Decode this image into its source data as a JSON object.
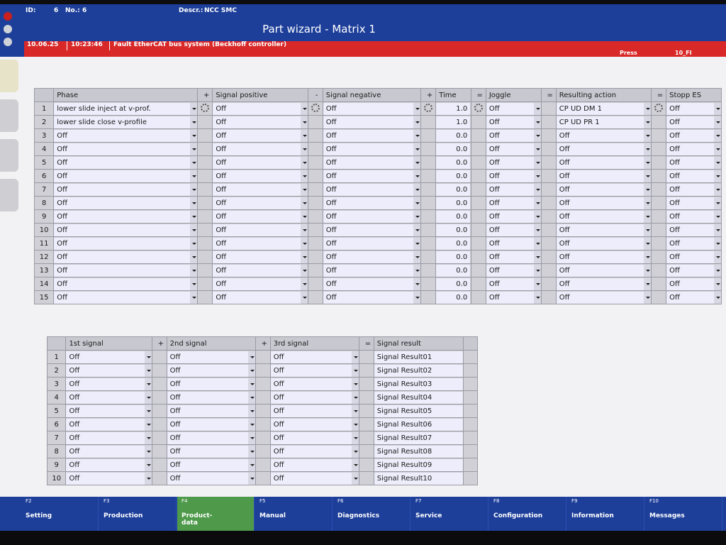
{
  "header": {
    "id_label": "ID:",
    "id_value": "6",
    "no_label": "No.:",
    "no_value": "6",
    "descr_label": "Descr.:",
    "descr_value": "NCC SMC",
    "title": "Part wizard - Matrix 1"
  },
  "alarm": {
    "date": "10.06.25",
    "time": "10:23:46",
    "message": "Fault EtherCAT bus system (Beckhoff controller)",
    "mode": "Press",
    "code": "10_FI",
    "color": "#d92828"
  },
  "matrix": {
    "headers": {
      "phase": "Phase",
      "op1": "+",
      "signal_positive": "Signal positive",
      "op2": "-",
      "signal_negative": "Signal negative",
      "op3": "+",
      "time": "Time",
      "op4": "=",
      "joggle": "Joggle",
      "op5": "=",
      "resulting_action": "Resulting action",
      "op6": "=",
      "stopp_es": "Stopp ES"
    },
    "rows": [
      {
        "n": "1",
        "phase": "lower slide inject at v-prof.",
        "pos": "Off",
        "neg": "Off",
        "time": "1.0",
        "joggle": "Off",
        "action": "CP UD DM 1",
        "stopp": "Off"
      },
      {
        "n": "2",
        "phase": "lower slide close v-profile",
        "pos": "Off",
        "neg": "Off",
        "time": "1.0",
        "joggle": "Off",
        "action": "CP UD PR 1",
        "stopp": "Off"
      },
      {
        "n": "3",
        "phase": "Off",
        "pos": "Off",
        "neg": "Off",
        "time": "0.0",
        "joggle": "Off",
        "action": "Off",
        "stopp": "Off"
      },
      {
        "n": "4",
        "phase": "Off",
        "pos": "Off",
        "neg": "Off",
        "time": "0.0",
        "joggle": "Off",
        "action": "Off",
        "stopp": "Off"
      },
      {
        "n": "5",
        "phase": "Off",
        "pos": "Off",
        "neg": "Off",
        "time": "0.0",
        "joggle": "Off",
        "action": "Off",
        "stopp": "Off"
      },
      {
        "n": "6",
        "phase": "Off",
        "pos": "Off",
        "neg": "Off",
        "time": "0.0",
        "joggle": "Off",
        "action": "Off",
        "stopp": "Off"
      },
      {
        "n": "7",
        "phase": "Off",
        "pos": "Off",
        "neg": "Off",
        "time": "0.0",
        "joggle": "Off",
        "action": "Off",
        "stopp": "Off"
      },
      {
        "n": "8",
        "phase": "Off",
        "pos": "Off",
        "neg": "Off",
        "time": "0.0",
        "joggle": "Off",
        "action": "Off",
        "stopp": "Off"
      },
      {
        "n": "9",
        "phase": "Off",
        "pos": "Off",
        "neg": "Off",
        "time": "0.0",
        "joggle": "Off",
        "action": "Off",
        "stopp": "Off"
      },
      {
        "n": "10",
        "phase": "Off",
        "pos": "Off",
        "neg": "Off",
        "time": "0.0",
        "joggle": "Off",
        "action": "Off",
        "stopp": "Off"
      },
      {
        "n": "11",
        "phase": "Off",
        "pos": "Off",
        "neg": "Off",
        "time": "0.0",
        "joggle": "Off",
        "action": "Off",
        "stopp": "Off"
      },
      {
        "n": "12",
        "phase": "Off",
        "pos": "Off",
        "neg": "Off",
        "time": "0.0",
        "joggle": "Off",
        "action": "Off",
        "stopp": "Off"
      },
      {
        "n": "13",
        "phase": "Off",
        "pos": "Off",
        "neg": "Off",
        "time": "0.0",
        "joggle": "Off",
        "action": "Off",
        "stopp": "Off"
      },
      {
        "n": "14",
        "phase": "Off",
        "pos": "Off",
        "neg": "Off",
        "time": "0.0",
        "joggle": "Off",
        "action": "Off",
        "stopp": "Off"
      },
      {
        "n": "15",
        "phase": "Off",
        "pos": "Off",
        "neg": "Off",
        "time": "0.0",
        "joggle": "Off",
        "action": "Off",
        "stopp": "Off"
      }
    ]
  },
  "signals": {
    "headers": {
      "first": "1st signal",
      "op1": "+",
      "second": "2nd signal",
      "op2": "+",
      "third": "3rd signal",
      "op3": "=",
      "result": "Signal result"
    },
    "rows": [
      {
        "n": "1",
        "s1": "Off",
        "s2": "Off",
        "s3": "Off",
        "result": "Signal Result01"
      },
      {
        "n": "2",
        "s1": "Off",
        "s2": "Off",
        "s3": "Off",
        "result": "Signal Result02"
      },
      {
        "n": "3",
        "s1": "Off",
        "s2": "Off",
        "s3": "Off",
        "result": "Signal Result03"
      },
      {
        "n": "4",
        "s1": "Off",
        "s2": "Off",
        "s3": "Off",
        "result": "Signal Result04"
      },
      {
        "n": "5",
        "s1": "Off",
        "s2": "Off",
        "s3": "Off",
        "result": "Signal Result05"
      },
      {
        "n": "6",
        "s1": "Off",
        "s2": "Off",
        "s3": "Off",
        "result": "Signal Result06"
      },
      {
        "n": "7",
        "s1": "Off",
        "s2": "Off",
        "s3": "Off",
        "result": "Signal Result07"
      },
      {
        "n": "8",
        "s1": "Off",
        "s2": "Off",
        "s3": "Off",
        "result": "Signal Result08"
      },
      {
        "n": "9",
        "s1": "Off",
        "s2": "Off",
        "s3": "Off",
        "result": "Signal Result09"
      },
      {
        "n": "10",
        "s1": "Off",
        "s2": "Off",
        "s3": "Off",
        "result": "Signal Result10"
      }
    ]
  },
  "fkeys": [
    {
      "key": "F2",
      "label": "Setting"
    },
    {
      "key": "F3",
      "label": "Production"
    },
    {
      "key": "F4",
      "label": "Product-\ndata",
      "active": true
    },
    {
      "key": "F5",
      "label": "Manual"
    },
    {
      "key": "F6",
      "label": "Diagnostics"
    },
    {
      "key": "F7",
      "label": "Service"
    },
    {
      "key": "F8",
      "label": "Configuration"
    },
    {
      "key": "F9",
      "label": "Information"
    },
    {
      "key": "F10",
      "label": "Messages"
    }
  ],
  "colors": {
    "header": "#1d3f9a",
    "active_key": "#4e9a4a",
    "cell": "#ededfb"
  }
}
